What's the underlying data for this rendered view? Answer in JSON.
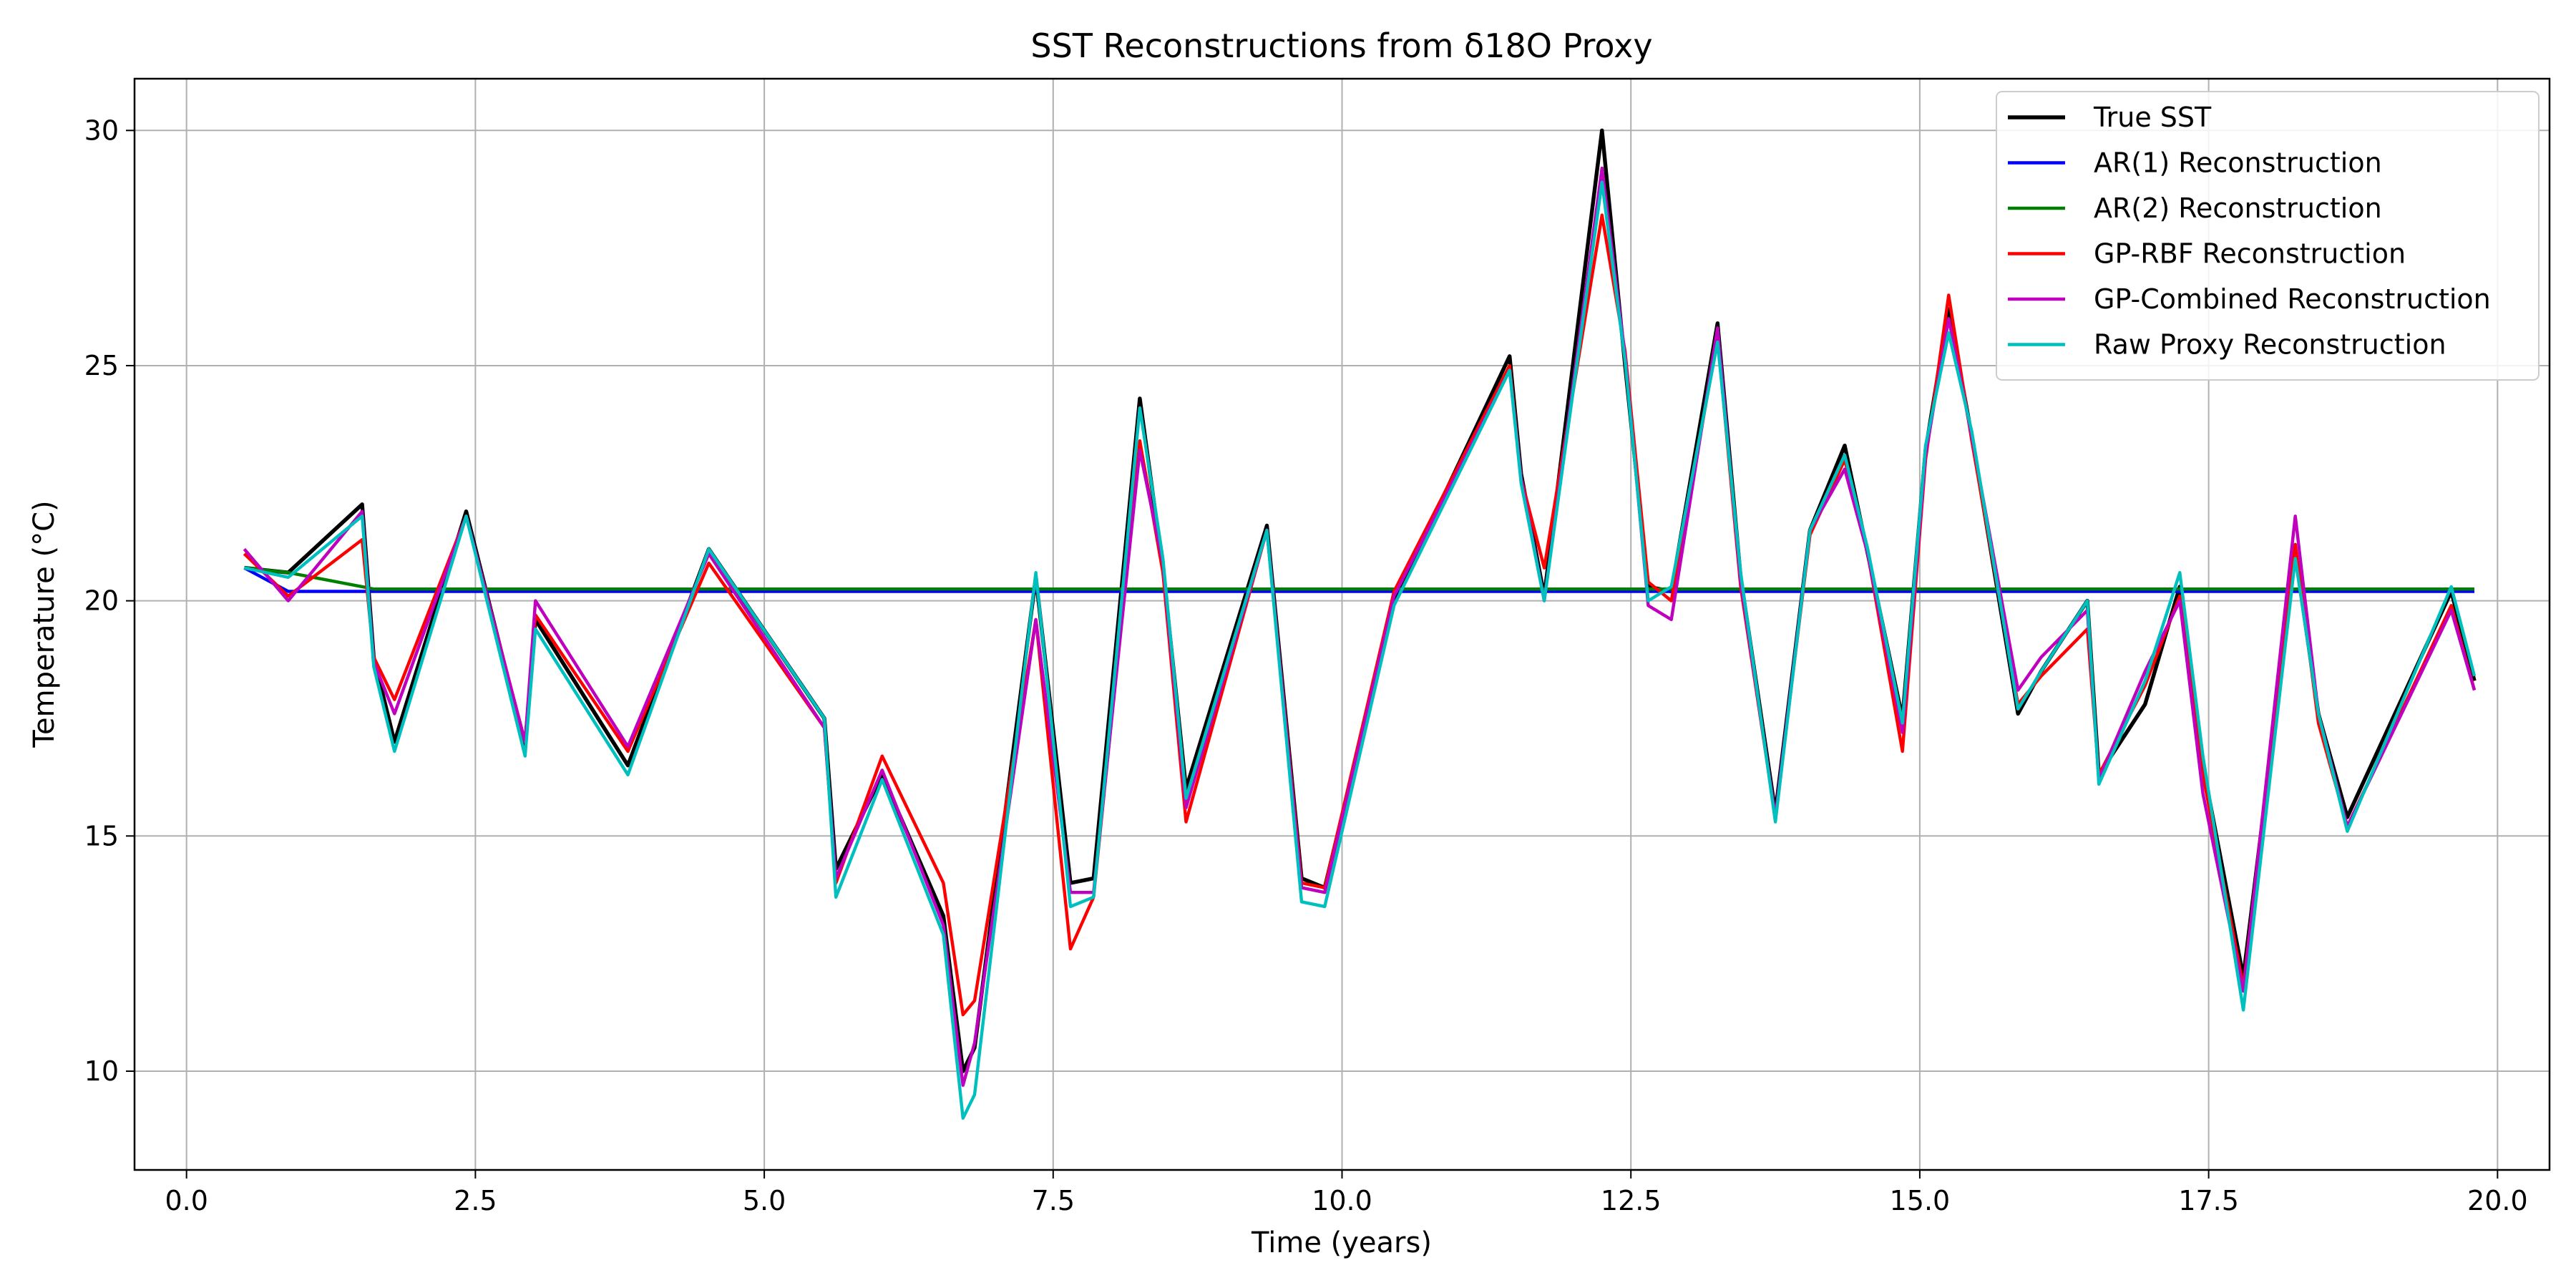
{
  "chart_data": {
    "type": "line",
    "title": "SST Reconstructions from δ18O Proxy",
    "xlabel": "Time (years)",
    "ylabel": "Temperature (°C)",
    "xlim": [
      -0.45,
      20.45
    ],
    "ylim": [
      7.9,
      31.1
    ],
    "xticks": [
      0,
      2.5,
      5,
      7.5,
      10,
      12.5,
      15,
      17.5,
      20
    ],
    "xtick_labels": [
      "0.0",
      "2.5",
      "5.0",
      "7.5",
      "10.0",
      "12.5",
      "15.0",
      "17.5",
      "20.0"
    ],
    "yticks": [
      10,
      15,
      20,
      25,
      30
    ],
    "ytick_labels": [
      "10",
      "15",
      "20",
      "25",
      "30"
    ],
    "grid": true,
    "legend_position": "top-right",
    "x": [
      0.5,
      0.88,
      1.52,
      1.62,
      1.8,
      2.42,
      2.93,
      3.02,
      3.82,
      4.52,
      5.52,
      5.62,
      6.02,
      6.55,
      6.72,
      6.82,
      7.35,
      7.65,
      7.85,
      8.25,
      8.45,
      8.65,
      9.35,
      9.65,
      9.85,
      10.45,
      11.45,
      11.55,
      11.75,
      12.25,
      12.45,
      12.65,
      12.85,
      13.25,
      13.45,
      13.75,
      14.05,
      14.35,
      14.55,
      14.85,
      15.05,
      15.25,
      15.45,
      15.85,
      16.05,
      16.45,
      16.55,
      16.95,
      17.25,
      17.45,
      17.8,
      18.25,
      18.45,
      18.7,
      19.6,
      19.8
    ],
    "series": [
      {
        "name": "True SST",
        "color": "#000000",
        "width": 3.2,
        "values": [
          20.7,
          20.6,
          22.05,
          18.8,
          17.0,
          21.9,
          16.9,
          19.6,
          16.5,
          21.1,
          17.5,
          14.3,
          16.3,
          13.3,
          10.0,
          10.5,
          20.5,
          14.0,
          14.1,
          24.3,
          20.7,
          16.0,
          21.6,
          14.1,
          13.9,
          20.0,
          25.2,
          22.7,
          20.1,
          30.0,
          25.0,
          20.3,
          20.2,
          25.9,
          20.5,
          15.5,
          21.5,
          23.3,
          21.0,
          17.5,
          23.2,
          26.2,
          23.5,
          17.6,
          18.5,
          20.0,
          16.3,
          17.8,
          20.3,
          16.5,
          12.0,
          21.0,
          17.6,
          15.4,
          20.2,
          18.3
        ]
      },
      {
        "name": "AR(1) Reconstruction",
        "color": "#0000ff",
        "width": 2.6,
        "values": [
          20.7,
          20.2,
          20.2,
          20.2,
          20.2,
          20.2,
          20.2,
          20.2,
          20.2,
          20.2,
          20.2,
          20.2,
          20.2,
          20.2,
          20.2,
          20.2,
          20.2,
          20.2,
          20.2,
          20.2,
          20.2,
          20.2,
          20.2,
          20.2,
          20.2,
          20.2,
          20.2,
          20.2,
          20.2,
          20.2,
          20.2,
          20.2,
          20.2,
          20.2,
          20.2,
          20.2,
          20.2,
          20.2,
          20.2,
          20.2,
          20.2,
          20.2,
          20.2,
          20.2,
          20.2,
          20.2,
          20.2,
          20.2,
          20.2,
          20.2,
          20.2,
          20.2,
          20.2,
          20.2,
          20.2,
          20.2
        ]
      },
      {
        "name": "AR(2) Reconstruction",
        "color": "#008000",
        "width": 2.6,
        "values": [
          20.7,
          20.6,
          20.3,
          20.25,
          20.25,
          20.25,
          20.25,
          20.25,
          20.25,
          20.25,
          20.25,
          20.25,
          20.25,
          20.25,
          20.25,
          20.25,
          20.25,
          20.25,
          20.25,
          20.25,
          20.25,
          20.25,
          20.25,
          20.25,
          20.25,
          20.25,
          20.25,
          20.25,
          20.25,
          20.25,
          20.25,
          20.25,
          20.25,
          20.25,
          20.25,
          20.25,
          20.25,
          20.25,
          20.25,
          20.25,
          20.25,
          20.25,
          20.25,
          20.25,
          20.25,
          20.25,
          20.25,
          20.25,
          20.25,
          20.25,
          20.25,
          20.25,
          20.25,
          20.25,
          20.25,
          20.25
        ]
      },
      {
        "name": "GP-RBF Reconstruction",
        "color": "#ff0000",
        "width": 2.6,
        "values": [
          21.0,
          20.1,
          21.3,
          18.8,
          17.9,
          21.8,
          17.0,
          19.7,
          16.8,
          20.8,
          17.3,
          14.0,
          16.7,
          14.0,
          11.2,
          11.5,
          19.6,
          12.6,
          13.7,
          23.4,
          20.6,
          15.3,
          21.5,
          14.0,
          13.9,
          20.2,
          25.0,
          22.6,
          20.7,
          28.2,
          25.3,
          20.4,
          20.0,
          25.6,
          20.3,
          15.4,
          21.4,
          23.0,
          21.0,
          16.8,
          23.0,
          26.5,
          23.4,
          17.8,
          18.4,
          19.4,
          16.3,
          18.2,
          20.1,
          16.3,
          11.8,
          21.2,
          17.4,
          15.2,
          19.9,
          18.1
        ]
      },
      {
        "name": "GP-Combined Reconstruction",
        "color": "#bf00bf",
        "width": 2.6,
        "values": [
          21.1,
          20.0,
          21.9,
          18.7,
          17.6,
          21.8,
          17.0,
          20.0,
          16.9,
          21.0,
          17.3,
          14.1,
          16.4,
          13.1,
          9.7,
          10.6,
          19.6,
          13.8,
          13.8,
          23.2,
          20.8,
          15.6,
          21.5,
          13.9,
          13.8,
          20.1,
          24.9,
          22.6,
          20.0,
          29.2,
          25.2,
          19.9,
          19.6,
          25.8,
          20.4,
          15.4,
          21.5,
          22.8,
          21.0,
          17.2,
          23.1,
          26.0,
          23.5,
          18.1,
          18.8,
          19.8,
          16.2,
          18.5,
          20.0,
          15.9,
          11.7,
          21.8,
          17.6,
          15.2,
          19.8,
          18.1
        ]
      },
      {
        "name": "Raw Proxy Reconstruction",
        "color": "#00bfbf",
        "width": 2.6,
        "values": [
          20.7,
          20.5,
          21.8,
          18.6,
          16.8,
          21.8,
          16.7,
          19.4,
          16.3,
          21.1,
          17.5,
          13.7,
          16.2,
          12.9,
          9.0,
          9.5,
          20.6,
          13.5,
          13.7,
          24.1,
          20.9,
          15.8,
          21.5,
          13.6,
          13.5,
          19.9,
          24.9,
          22.5,
          20.0,
          28.9,
          25.1,
          20.0,
          20.3,
          25.5,
          20.6,
          15.3,
          21.5,
          23.1,
          21.1,
          17.4,
          23.3,
          25.7,
          23.6,
          17.7,
          18.5,
          20.0,
          16.1,
          18.3,
          20.6,
          16.7,
          11.3,
          20.9,
          17.6,
          15.1,
          20.3,
          18.4
        ]
      }
    ]
  }
}
